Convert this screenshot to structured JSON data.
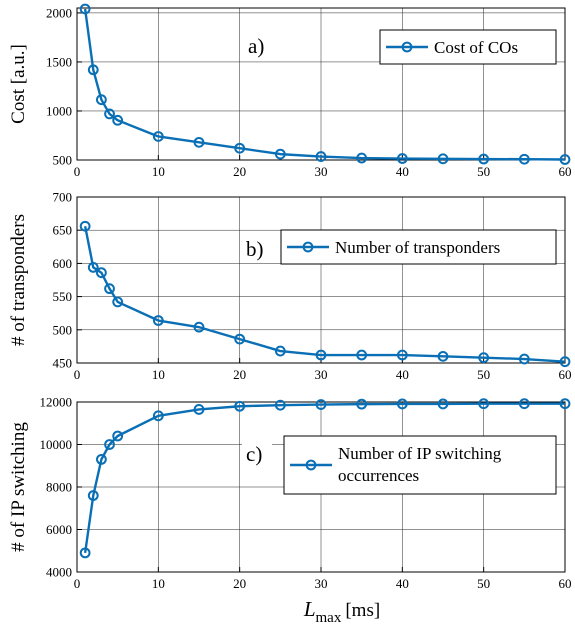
{
  "chart_data": [
    {
      "type": "line",
      "panel_label": "a)",
      "ylabel": "Cost [a.u.]",
      "xlim": [
        0,
        60
      ],
      "ylim": [
        500,
        2050
      ],
      "xticks": [
        0,
        10,
        20,
        30,
        40,
        50,
        60
      ],
      "yticks": [
        500,
        1000,
        1500,
        2000
      ],
      "grid": true,
      "legend_position": "top-right",
      "series": [
        {
          "name": "Cost of COs",
          "color": "#0a6fb5",
          "marker": "circle",
          "x": [
            1,
            2,
            3,
            4,
            5,
            10,
            15,
            20,
            25,
            30,
            35,
            40,
            45,
            50,
            55,
            60
          ],
          "y": [
            2040,
            1420,
            1115,
            970,
            905,
            740,
            680,
            620,
            560,
            535,
            520,
            515,
            512,
            510,
            508,
            505
          ]
        }
      ]
    },
    {
      "type": "line",
      "panel_label": "b)",
      "ylabel": "# of transponders",
      "xlim": [
        0,
        60
      ],
      "ylim": [
        450,
        700
      ],
      "xticks": [
        0,
        10,
        20,
        30,
        40,
        50,
        60
      ],
      "yticks": [
        450,
        500,
        550,
        600,
        650,
        700
      ],
      "grid": true,
      "legend_position": "center-right",
      "series": [
        {
          "name": "Number of transponders",
          "color": "#0a6fb5",
          "marker": "circle",
          "x": [
            1,
            2,
            3,
            4,
            5,
            10,
            15,
            20,
            25,
            30,
            35,
            40,
            45,
            50,
            55,
            60
          ],
          "y": [
            656,
            594,
            586,
            562,
            542,
            514,
            504,
            486,
            468,
            462,
            462,
            462,
            460,
            458,
            456,
            452
          ]
        }
      ]
    },
    {
      "type": "line",
      "panel_label": "c)",
      "ylabel": "# of IP switching",
      "xlabel": "L",
      "xlabel_subscript": "max",
      "xlabel_unit": "[ms]",
      "xlim": [
        0,
        60
      ],
      "ylim": [
        4000,
        12000
      ],
      "xticks": [
        0,
        10,
        20,
        30,
        40,
        50,
        60
      ],
      "yticks": [
        4000,
        6000,
        8000,
        10000,
        12000
      ],
      "grid": true,
      "legend_position": "center-right",
      "series": [
        {
          "name": "Number of IP switching occurrences",
          "name_lines": [
            "Number of IP switching",
            "occurrences"
          ],
          "color": "#0a6fb5",
          "marker": "circle",
          "x": [
            1,
            2,
            3,
            4,
            5,
            10,
            15,
            20,
            25,
            30,
            35,
            40,
            45,
            50,
            55,
            60
          ],
          "y": [
            4900,
            7600,
            9300,
            10000,
            10400,
            11350,
            11650,
            11800,
            11850,
            11880,
            11900,
            11910,
            11910,
            11920,
            11920,
            11920
          ]
        }
      ]
    }
  ]
}
